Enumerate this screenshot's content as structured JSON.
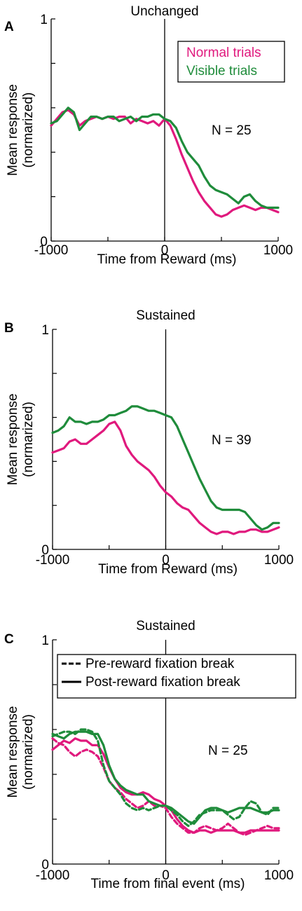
{
  "colors": {
    "normal": "#e0197d",
    "visible": "#1f8c3b",
    "axis": "#000000"
  },
  "chart_data": [
    {
      "type": "line",
      "panel": "A",
      "title": "Unchanged",
      "xlabel": "Time from Reward (ms)",
      "ylabel": [
        "Mean response",
        "(normarized)"
      ],
      "xlim": [
        -1000,
        1000
      ],
      "ylim": [
        0,
        1
      ],
      "xticks": [
        -1000,
        0,
        1000
      ],
      "yticks": [
        0,
        1
      ],
      "annotation": "N = 25",
      "legend": {
        "placement": "top-right",
        "boxed": true
      },
      "series": [
        {
          "name": "Normal trials",
          "color": "#e0197d",
          "dash": false,
          "x": [
            -1000,
            -950,
            -900,
            -850,
            -800,
            -750,
            -700,
            -650,
            -600,
            -550,
            -500,
            -450,
            -400,
            -350,
            -300,
            -250,
            -200,
            -150,
            -100,
            -50,
            0,
            50,
            100,
            150,
            200,
            250,
            300,
            350,
            400,
            450,
            500,
            550,
            600,
            650,
            700,
            750,
            800,
            850,
            900,
            950,
            1000
          ],
          "y": [
            0.52,
            0.55,
            0.58,
            0.59,
            0.57,
            0.52,
            0.54,
            0.55,
            0.56,
            0.55,
            0.56,
            0.55,
            0.56,
            0.56,
            0.53,
            0.55,
            0.54,
            0.53,
            0.54,
            0.52,
            0.55,
            0.52,
            0.46,
            0.39,
            0.33,
            0.27,
            0.22,
            0.18,
            0.15,
            0.12,
            0.11,
            0.12,
            0.14,
            0.15,
            0.16,
            0.15,
            0.14,
            0.15,
            0.15,
            0.14,
            0.13
          ]
        },
        {
          "name": "Visible trials",
          "color": "#1f8c3b",
          "dash": false,
          "x": [
            -1000,
            -950,
            -900,
            -850,
            -800,
            -750,
            -700,
            -650,
            -600,
            -550,
            -500,
            -450,
            -400,
            -350,
            -300,
            -250,
            -200,
            -150,
            -100,
            -50,
            0,
            50,
            100,
            150,
            200,
            250,
            300,
            350,
            400,
            450,
            500,
            550,
            600,
            650,
            700,
            750,
            800,
            850,
            900,
            950,
            1000
          ],
          "y": [
            0.53,
            0.54,
            0.57,
            0.6,
            0.58,
            0.5,
            0.53,
            0.56,
            0.56,
            0.55,
            0.56,
            0.56,
            0.54,
            0.55,
            0.56,
            0.54,
            0.56,
            0.56,
            0.57,
            0.57,
            0.55,
            0.54,
            0.51,
            0.45,
            0.4,
            0.37,
            0.34,
            0.29,
            0.25,
            0.23,
            0.22,
            0.21,
            0.19,
            0.17,
            0.2,
            0.21,
            0.18,
            0.16,
            0.15,
            0.15,
            0.15
          ]
        }
      ]
    },
    {
      "type": "line",
      "panel": "B",
      "title": "Sustained",
      "xlabel": "Time from Reward (ms)",
      "ylabel": [
        "Mean response",
        "(normarized)"
      ],
      "xlim": [
        -1000,
        1000
      ],
      "ylim": [
        0,
        1
      ],
      "xticks": [
        -1000,
        0,
        1000
      ],
      "yticks": [
        0,
        1
      ],
      "annotation": "N = 39",
      "series": [
        {
          "name": "Normal trials",
          "color": "#e0197d",
          "dash": false,
          "x": [
            -1000,
            -950,
            -900,
            -850,
            -800,
            -750,
            -700,
            -650,
            -600,
            -550,
            -500,
            -450,
            -400,
            -350,
            -300,
            -250,
            -200,
            -150,
            -100,
            -50,
            0,
            50,
            100,
            150,
            200,
            250,
            300,
            350,
            400,
            450,
            500,
            550,
            600,
            650,
            700,
            750,
            800,
            850,
            900,
            950,
            1000
          ],
          "y": [
            0.44,
            0.45,
            0.46,
            0.49,
            0.5,
            0.48,
            0.48,
            0.5,
            0.52,
            0.54,
            0.57,
            0.58,
            0.54,
            0.47,
            0.43,
            0.4,
            0.38,
            0.36,
            0.33,
            0.29,
            0.26,
            0.24,
            0.21,
            0.19,
            0.18,
            0.15,
            0.12,
            0.1,
            0.08,
            0.07,
            0.08,
            0.08,
            0.07,
            0.08,
            0.08,
            0.09,
            0.09,
            0.08,
            0.08,
            0.09,
            0.1
          ]
        },
        {
          "name": "Visible trials",
          "color": "#1f8c3b",
          "dash": false,
          "x": [
            -1000,
            -950,
            -900,
            -850,
            -800,
            -750,
            -700,
            -650,
            -600,
            -550,
            -500,
            -450,
            -400,
            -350,
            -300,
            -250,
            -200,
            -150,
            -100,
            -50,
            0,
            50,
            100,
            150,
            200,
            250,
            300,
            350,
            400,
            450,
            500,
            550,
            600,
            650,
            700,
            750,
            800,
            850,
            900,
            950,
            1000
          ],
          "y": [
            0.53,
            0.54,
            0.56,
            0.6,
            0.58,
            0.58,
            0.57,
            0.58,
            0.58,
            0.59,
            0.61,
            0.61,
            0.62,
            0.63,
            0.65,
            0.65,
            0.64,
            0.63,
            0.63,
            0.62,
            0.61,
            0.6,
            0.56,
            0.5,
            0.44,
            0.38,
            0.32,
            0.27,
            0.22,
            0.19,
            0.18,
            0.18,
            0.18,
            0.18,
            0.17,
            0.14,
            0.11,
            0.09,
            0.1,
            0.12,
            0.12
          ]
        }
      ]
    },
    {
      "type": "line",
      "panel": "C",
      "title": "Sustained",
      "xlabel": "Time from final event (ms)",
      "ylabel": [
        "Mean response",
        "(normarized)"
      ],
      "xlim": [
        -1000,
        1000
      ],
      "ylim": [
        0,
        1
      ],
      "xticks": [
        -1000,
        0,
        1000
      ],
      "yticks": [
        0,
        1
      ],
      "annotation": "N = 25",
      "legend": {
        "placement": "top-right",
        "boxed": true
      },
      "legend_entries": [
        {
          "label": "Pre-reward fixation break",
          "dash": true
        },
        {
          "label": "Post-reward fixation break",
          "dash": false
        }
      ],
      "series": [
        {
          "name": "Pre-reward fixation break",
          "color": "#e0197d",
          "dash": true,
          "x": [
            -1000,
            -950,
            -900,
            -850,
            -800,
            -750,
            -700,
            -650,
            -600,
            -550,
            -500,
            -450,
            -400,
            -350,
            -300,
            -250,
            -200,
            -150,
            -100,
            -50,
            0,
            50,
            100,
            150,
            200,
            250,
            300,
            350,
            400,
            450,
            500,
            550,
            600,
            650,
            700,
            750,
            800,
            850,
            900,
            950,
            1000
          ],
          "y": [
            0.56,
            0.54,
            0.53,
            0.5,
            0.48,
            0.5,
            0.51,
            0.5,
            0.48,
            0.43,
            0.37,
            0.34,
            0.32,
            0.29,
            0.27,
            0.25,
            0.26,
            0.28,
            0.26,
            0.26,
            0.25,
            0.21,
            0.18,
            0.16,
            0.14,
            0.14,
            0.16,
            0.17,
            0.16,
            0.15,
            0.16,
            0.18,
            0.16,
            0.14,
            0.13,
            0.14,
            0.15,
            0.16,
            0.17,
            0.16,
            0.16
          ]
        },
        {
          "name": "Post-reward fixation break",
          "color": "#e0197d",
          "dash": false,
          "x": [
            -1000,
            -950,
            -900,
            -850,
            -800,
            -750,
            -700,
            -650,
            -600,
            -550,
            -500,
            -450,
            -400,
            -350,
            -300,
            -250,
            -200,
            -150,
            -100,
            -50,
            0,
            50,
            100,
            150,
            200,
            250,
            300,
            350,
            400,
            450,
            500,
            550,
            600,
            650,
            700,
            750,
            800,
            850,
            900,
            950,
            1000
          ],
          "y": [
            0.51,
            0.53,
            0.55,
            0.54,
            0.56,
            0.55,
            0.55,
            0.53,
            0.53,
            0.49,
            0.43,
            0.38,
            0.34,
            0.32,
            0.31,
            0.31,
            0.32,
            0.31,
            0.29,
            0.28,
            0.26,
            0.24,
            0.2,
            0.17,
            0.15,
            0.14,
            0.15,
            0.15,
            0.14,
            0.15,
            0.15,
            0.15,
            0.15,
            0.14,
            0.14,
            0.15,
            0.15,
            0.15,
            0.15,
            0.15,
            0.15
          ]
        },
        {
          "name": "Pre-reward fixation break",
          "color": "#1f8c3b",
          "dash": true,
          "x": [
            -1000,
            -950,
            -900,
            -850,
            -800,
            -750,
            -700,
            -650,
            -600,
            -550,
            -500,
            -450,
            -400,
            -350,
            -300,
            -250,
            -200,
            -150,
            -100,
            -50,
            0,
            50,
            100,
            150,
            200,
            250,
            300,
            350,
            400,
            450,
            500,
            550,
            600,
            650,
            700,
            750,
            800,
            850,
            900,
            950,
            1000
          ],
          "y": [
            0.57,
            0.58,
            0.59,
            0.59,
            0.58,
            0.6,
            0.6,
            0.59,
            0.55,
            0.44,
            0.37,
            0.34,
            0.31,
            0.27,
            0.25,
            0.24,
            0.25,
            0.24,
            0.25,
            0.26,
            0.26,
            0.24,
            0.22,
            0.19,
            0.17,
            0.19,
            0.22,
            0.23,
            0.24,
            0.24,
            0.24,
            0.22,
            0.2,
            0.21,
            0.25,
            0.28,
            0.27,
            0.23,
            0.22,
            0.25,
            0.25
          ]
        },
        {
          "name": "Post-reward fixation break",
          "color": "#1f8c3b",
          "dash": false,
          "x": [
            -1000,
            -950,
            -900,
            -850,
            -800,
            -750,
            -700,
            -650,
            -600,
            -550,
            -500,
            -450,
            -400,
            -350,
            -300,
            -250,
            -200,
            -150,
            -100,
            -50,
            0,
            50,
            100,
            150,
            200,
            250,
            300,
            350,
            400,
            450,
            500,
            550,
            600,
            650,
            700,
            750,
            800,
            850,
            900,
            950,
            1000
          ],
          "y": [
            0.58,
            0.57,
            0.56,
            0.58,
            0.59,
            0.59,
            0.59,
            0.58,
            0.58,
            0.53,
            0.44,
            0.38,
            0.35,
            0.33,
            0.32,
            0.31,
            0.31,
            0.28,
            0.27,
            0.26,
            0.26,
            0.25,
            0.23,
            0.21,
            0.19,
            0.18,
            0.21,
            0.24,
            0.25,
            0.25,
            0.24,
            0.23,
            0.24,
            0.25,
            0.25,
            0.25,
            0.24,
            0.23,
            0.23,
            0.24,
            0.24
          ]
        }
      ]
    }
  ]
}
